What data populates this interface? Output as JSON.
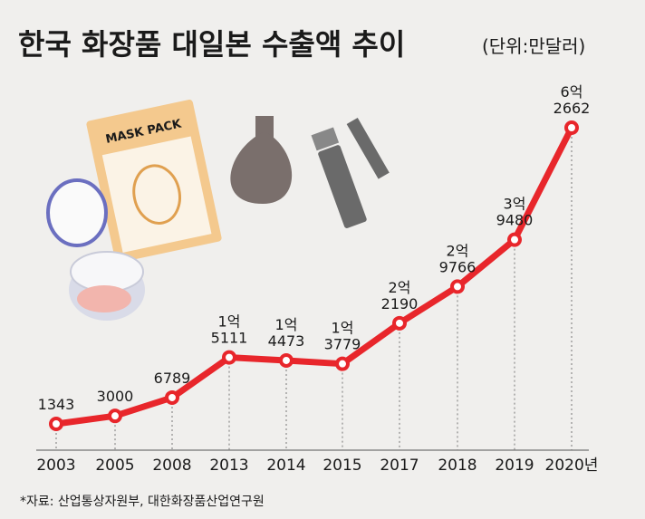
{
  "chart_data": {
    "type": "line",
    "title": "한국 화장품 대일본 수출액 추이",
    "subtitle": "(단위:만달러)",
    "source": "*자료: 산업통상자원부, 대한화장품산업연구원",
    "categories": [
      "2003",
      "2005",
      "2008",
      "2013",
      "2014",
      "2015",
      "2017",
      "2018",
      "2019",
      "2020년"
    ],
    "values": [
      1343,
      3000,
      6789,
      15111,
      14473,
      13779,
      22190,
      29766,
      39480,
      62662
    ],
    "value_labels": [
      "1343",
      "3000",
      "6789",
      "1억\n5111",
      "1억\n4473",
      "1억\n3779",
      "2억\n2190",
      "2억\n9766",
      "3억\n9480",
      "6억\n2662"
    ],
    "color": "#e8262b",
    "grid": true
  }
}
